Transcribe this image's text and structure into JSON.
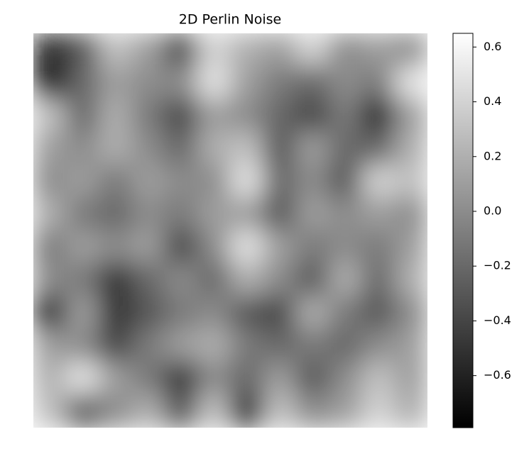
{
  "chart_data": {
    "type": "heatmap",
    "title": "2D Perlin Noise",
    "cmap": "gray",
    "zlim": [
      -0.79,
      0.65
    ],
    "zticks": [
      {
        "value": -0.6,
        "label": "−0.6"
      },
      {
        "value": -0.4,
        "label": "−0.4"
      },
      {
        "value": -0.2,
        "label": "−0.2"
      },
      {
        "value": 0.0,
        "label": "0.0"
      },
      0.2,
      0.4,
      0.6
    ],
    "z": [
      [
        -0.6,
        -0.3,
        0.3,
        0.1,
        -0.4,
        0.4,
        0.2,
        0.1,
        0.4,
        0.0,
        0.1,
        0.0
      ],
      [
        -0.7,
        -0.2,
        0.1,
        0.0,
        0.0,
        0.5,
        0.1,
        -0.1,
        -0.2,
        0.0,
        -0.1,
        0.5
      ],
      [
        0.3,
        -0.2,
        0.2,
        -0.1,
        -0.4,
        0.1,
        0.0,
        -0.2,
        -0.4,
        -0.1,
        -0.6,
        0.1
      ],
      [
        0.1,
        0.0,
        0.2,
        0.0,
        -0.2,
        0.2,
        0.3,
        -0.3,
        0.1,
        -0.2,
        -0.2,
        0.2
      ],
      [
        0.0,
        0.1,
        -0.1,
        0.1,
        0.0,
        0.0,
        0.5,
        -0.2,
        0.0,
        -0.3,
        0.4,
        0.3
      ],
      [
        0.2,
        -0.1,
        -0.2,
        0.0,
        -0.1,
        0.1,
        0.1,
        -0.3,
        0.1,
        0.0,
        0.1,
        0.0
      ],
      [
        -0.1,
        0.1,
        0.0,
        0.1,
        -0.4,
        0.0,
        0.5,
        0.1,
        -0.1,
        0.0,
        -0.1,
        0.1
      ],
      [
        0.0,
        -0.1,
        -0.5,
        -0.2,
        0.0,
        -0.2,
        0.2,
        0.0,
        -0.3,
        0.2,
        -0.2,
        0.2
      ],
      [
        -0.6,
        0.1,
        -0.5,
        -0.3,
        -0.1,
        0.0,
        -0.3,
        -0.4,
        0.2,
        -0.1,
        -0.3,
        0.0
      ],
      [
        0.1,
        0.0,
        -0.4,
        -0.1,
        0.1,
        0.2,
        -0.1,
        -0.2,
        -0.1,
        -0.2,
        0.0,
        0.1
      ],
      [
        0.2,
        0.5,
        0.1,
        -0.1,
        -0.5,
        0.0,
        -0.2,
        0.1,
        -0.3,
        0.0,
        0.3,
        0.1
      ],
      [
        0.3,
        -0.3,
        0.0,
        0.2,
        -0.3,
        0.3,
        -0.6,
        0.3,
        0.0,
        0.1,
        0.4,
        0.2
      ]
    ]
  }
}
